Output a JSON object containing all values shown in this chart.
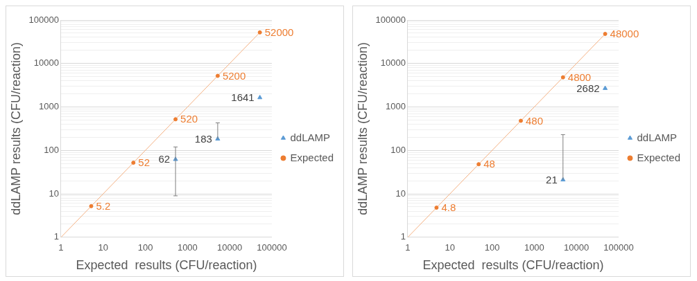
{
  "chart_data": [
    {
      "type": "scatter",
      "xlabel": "Expected  results (CFU/reaction)",
      "ylabel": "ddLAMP results (CFU/reaction)",
      "log": "xy",
      "grid": "y",
      "legend": "right",
      "xlim": [
        1,
        100000
      ],
      "xticks": [
        1,
        10,
        100,
        1000,
        10000,
        100000
      ],
      "ylim": [
        1,
        100000
      ],
      "yticks": [
        1,
        10,
        100,
        1000,
        10000,
        100000
      ],
      "series": [
        {
          "name": "ddLAMP",
          "color": "#5b9bd5",
          "marker": "triangle",
          "x": [
            520,
            5200,
            52000
          ],
          "values": [
            62,
            183,
            1641
          ],
          "value_labels": [
            "62",
            "183",
            "1641"
          ],
          "errors": [
            [
              9,
              120
            ],
            [
              183,
              430
            ],
            null
          ]
        },
        {
          "name": "Expected",
          "color": "#ed7d31",
          "marker": "circle",
          "x": [
            5.2,
            52,
            520,
            5200,
            52000
          ],
          "values": [
            5.2,
            52,
            520,
            5200,
            52000
          ],
          "value_labels": [
            "5.2",
            "52",
            "520",
            "5200",
            "52000"
          ]
        },
        {
          "type": "line",
          "color": "#f4b183",
          "marker": "none",
          "x": [
            1,
            52000
          ],
          "values": [
            1,
            52000
          ]
        }
      ]
    },
    {
      "type": "scatter",
      "xlabel": "Expected  results (CFU/reaction)",
      "ylabel": "ddLAMP results (CFU/reaction)",
      "log": "xy",
      "grid": "y",
      "legend": "right",
      "xlim": [
        1,
        100000
      ],
      "xticks": [
        1,
        10,
        100,
        1000,
        10000,
        100000
      ],
      "ylim": [
        1,
        100000
      ],
      "yticks": [
        1,
        10,
        100,
        1000,
        10000,
        100000
      ],
      "series": [
        {
          "name": "ddLAMP",
          "color": "#5b9bd5",
          "marker": "triangle",
          "x": [
            4800,
            48000
          ],
          "values": [
            21,
            2682
          ],
          "value_labels": [
            "21",
            "2682"
          ],
          "errors": [
            [
              21,
              230
            ],
            null
          ]
        },
        {
          "name": "Expected",
          "color": "#ed7d31",
          "marker": "circle",
          "x": [
            4.8,
            48,
            480,
            4800,
            48000
          ],
          "values": [
            4.8,
            48,
            480,
            4800,
            48000
          ],
          "value_labels": [
            "4.8",
            "48",
            "480",
            "4800",
            "48000"
          ]
        },
        {
          "type": "line",
          "color": "#f4b183",
          "marker": "none",
          "x": [
            1,
            48000
          ],
          "values": [
            1,
            48000
          ]
        }
      ]
    }
  ]
}
